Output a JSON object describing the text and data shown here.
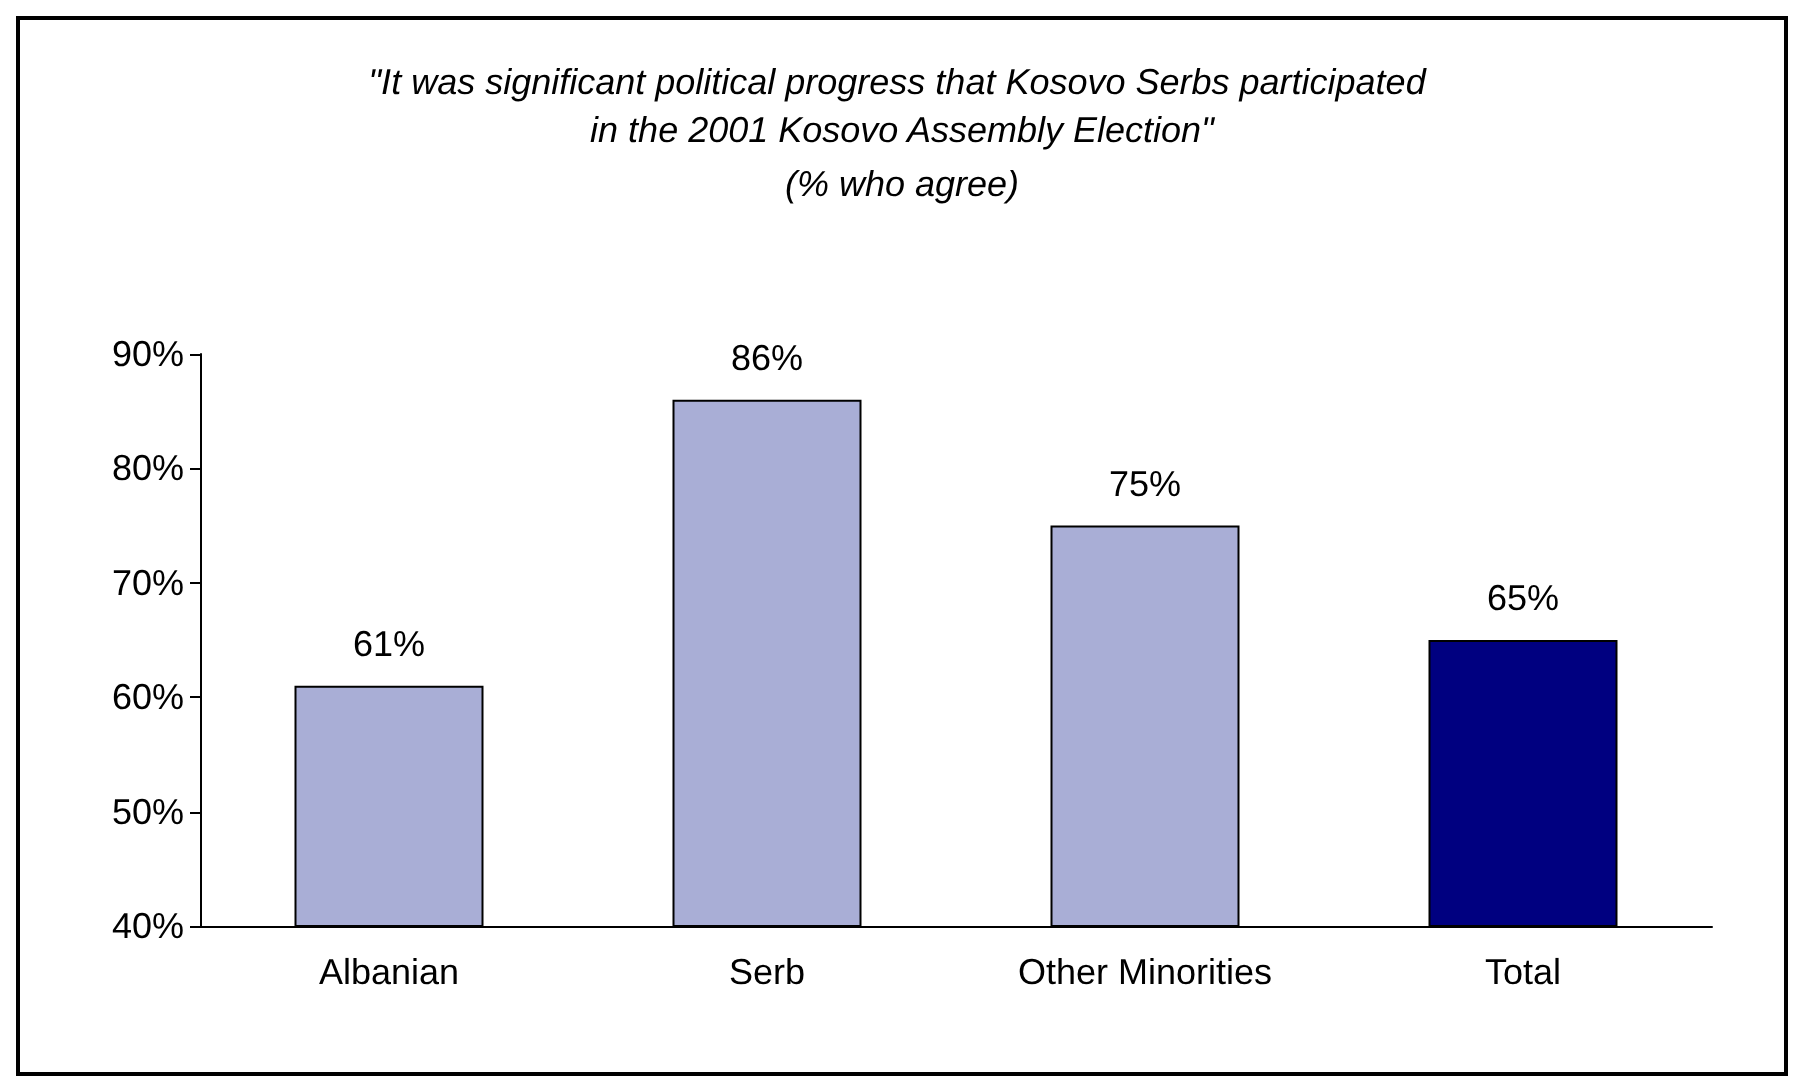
{
  "chart_data": {
    "type": "bar",
    "title": "\"It was significant political progress that Kosovo Serbs participated in the 2001 Kosovo Assembly Election\"",
    "subtitle": "(% who agree)",
    "categories": [
      "Albanian",
      "Serb",
      "Other Minorities",
      "Total"
    ],
    "values": [
      61,
      86,
      75,
      65
    ],
    "colors": [
      "#a9aed6",
      "#a9aed6",
      "#a9aed6",
      "#000080"
    ],
    "value_labels": [
      "61%",
      "86%",
      "75%",
      "65%"
    ],
    "ylim": [
      40,
      90
    ],
    "yticks": [
      {
        "value": 40,
        "label": "40%"
      },
      {
        "value": 50,
        "label": "50%"
      },
      {
        "value": 60,
        "label": "60%"
      },
      {
        "value": 70,
        "label": "70%"
      },
      {
        "value": 80,
        "label": "80%"
      },
      {
        "value": 90,
        "label": "90%"
      }
    ],
    "grid": false
  }
}
